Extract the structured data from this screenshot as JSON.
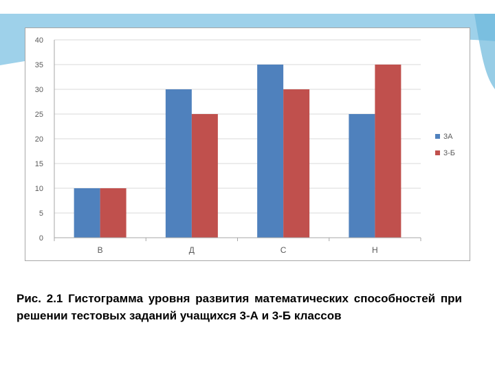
{
  "colors": {
    "series_a": "#4f81bd",
    "series_b": "#c0504d",
    "gridline": "#d9d9d9",
    "axis": "#a6a6a6",
    "tick_text": "#595959",
    "slide_wave": "#8dc9e6"
  },
  "chart_data": {
    "type": "bar",
    "categories": [
      "В",
      "Д",
      "С",
      "Н"
    ],
    "series": [
      {
        "name": "3А",
        "values": [
          10,
          30,
          35,
          25
        ]
      },
      {
        "name": "3-Б",
        "values": [
          10,
          25,
          30,
          35
        ]
      }
    ],
    "yticks": [
      "0",
      "5",
      "10",
      "15",
      "20",
      "25",
      "30",
      "35",
      "40"
    ],
    "ylim": [
      0,
      40
    ],
    "grid": true,
    "legend": "right",
    "title": "",
    "xlabel": "",
    "ylabel": ""
  },
  "caption": "Рис. 2.1 Гистограмма уровня развития математических способностей при решении тестовых заданий учащихся 3-А и 3-Б классов"
}
